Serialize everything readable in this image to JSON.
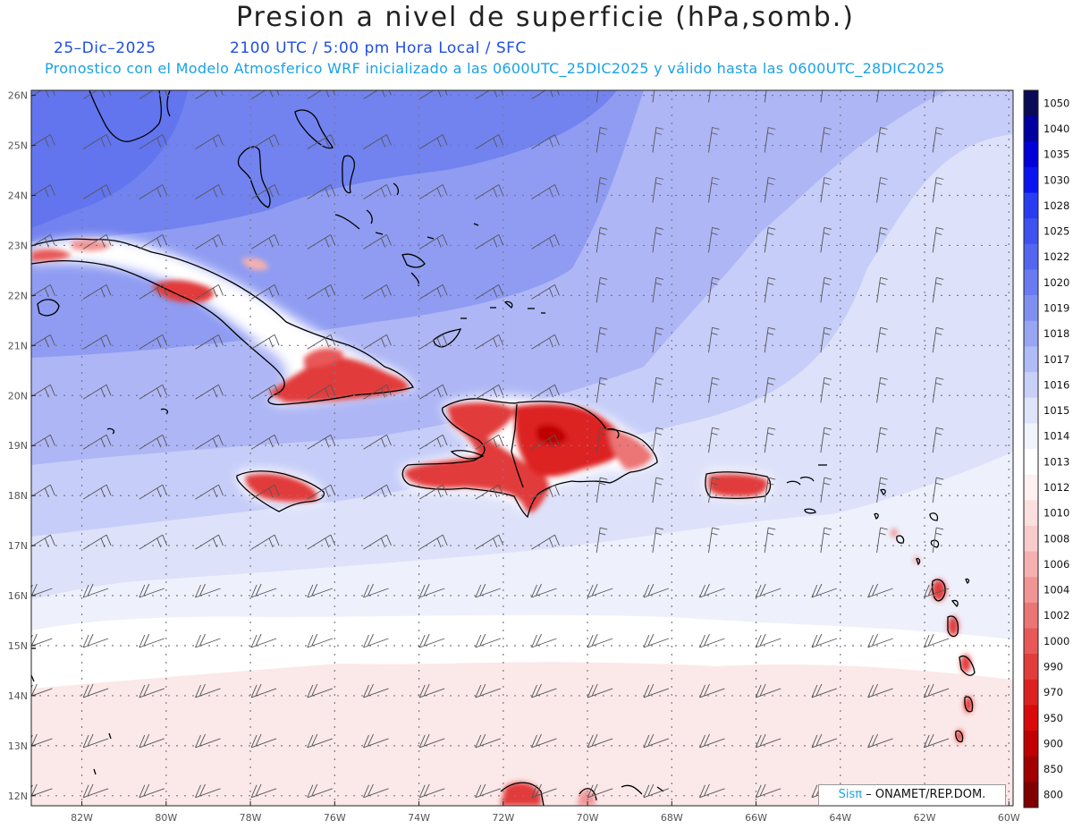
{
  "header": {
    "title": "Presion a nivel de superficie (hPa,somb.)",
    "date": "25–Dic–2025",
    "time": "2100 UTC / 5:00 pm Hora Local / SFC",
    "subtitle": "Pronostico con el Modelo Atmosferico WRF inicializado a las 0600UTC_25DIC2025 y válido hasta las  0600UTC_28DIC2025"
  },
  "map": {
    "lon_range": [
      -83.2,
      -59.9
    ],
    "lat_range": [
      11.8,
      26.1
    ],
    "lat_labels": [
      "12N",
      "13N",
      "14N",
      "15N",
      "16N",
      "17N",
      "18N",
      "19N",
      "20N",
      "21N",
      "22N",
      "23N",
      "24N",
      "25N",
      "26N"
    ],
    "lon_labels": [
      "82W",
      "80W",
      "78W",
      "76W",
      "74W",
      "72W",
      "70W",
      "68W",
      "66W",
      "64W",
      "62W",
      "60W"
    ],
    "wind_barbs": "knots, NE trades",
    "islands": [
      "Cuba",
      "Jamaica",
      "Hispaniola",
      "Puerto Rico",
      "Bahamas",
      "Lesser Antilles"
    ]
  },
  "colorbar": {
    "labels": [
      "1050",
      "1040",
      "1035",
      "1030",
      "1028",
      "1025",
      "1022",
      "1020",
      "1019",
      "1018",
      "1017",
      "1016",
      "1015",
      "1014",
      "1013",
      "1012",
      "1010",
      "1008",
      "1006",
      "1004",
      "1002",
      "1000",
      "990",
      "970",
      "950",
      "900",
      "850",
      "800"
    ],
    "colors": [
      "#0a0a55",
      "#0000a0",
      "#0000d8",
      "#0a14f0",
      "#2a3cf2",
      "#3f52f0",
      "#5466ef",
      "#6a7af0",
      "#8090f0",
      "#97a5f2",
      "#b0bcf5",
      "#c8d0f8",
      "#dfe4fb",
      "#f2f4fd",
      "#ffffff",
      "#fdf1f1",
      "#fce0e0",
      "#f9cccc",
      "#f5b0b0",
      "#f19494",
      "#ec7575",
      "#e85858",
      "#e33c3c",
      "#dd2121",
      "#d80a0a",
      "#c00000",
      "#a00000",
      "#800000"
    ]
  },
  "attribution": {
    "logo": "Sisπ",
    "text": "– ONAMET/REP.DOM."
  }
}
